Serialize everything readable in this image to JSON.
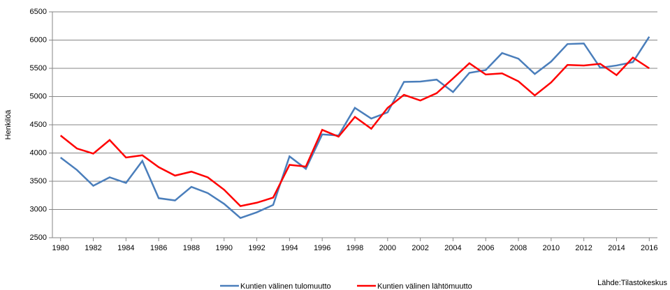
{
  "chart_data": {
    "type": "line",
    "y_label": "Henkilöä",
    "source": "Lähde:Tilastokeskus",
    "x": [
      1980,
      1981,
      1982,
      1983,
      1984,
      1985,
      1986,
      1987,
      1988,
      1989,
      1990,
      1991,
      1992,
      1993,
      1994,
      1995,
      1996,
      1997,
      1998,
      1999,
      2000,
      2001,
      2002,
      2003,
      2004,
      2005,
      2006,
      2007,
      2008,
      2009,
      2010,
      2011,
      2012,
      2013,
      2014,
      2015,
      2016
    ],
    "series": [
      {
        "name": "Kuntien välinen tulomuutto",
        "color": "#4a7ebb",
        "values": [
          3920,
          3700,
          3420,
          3570,
          3470,
          3860,
          3200,
          3160,
          3400,
          3290,
          3100,
          2850,
          2950,
          3080,
          3940,
          3720,
          4330,
          4310,
          4800,
          4610,
          4720,
          5260,
          5265,
          5300,
          5080,
          5420,
          5470,
          5770,
          5670,
          5400,
          5620,
          5930,
          5940,
          5510,
          5550,
          5610,
          6060
        ]
      },
      {
        "name": "Kuntien välinen lähtömuutto",
        "color": "#ff0000",
        "values": [
          4310,
          4080,
          3990,
          4230,
          3920,
          3960,
          3750,
          3600,
          3670,
          3570,
          3350,
          3060,
          3120,
          3210,
          3790,
          3760,
          4410,
          4290,
          4640,
          4430,
          4800,
          5030,
          4930,
          5060,
          5320,
          5590,
          5390,
          5410,
          5270,
          5020,
          5250,
          5560,
          5550,
          5580,
          5380,
          5690,
          5500
        ]
      }
    ],
    "xlim": [
      1979.5,
      2016.5
    ],
    "xticks": [
      1980,
      1982,
      1984,
      1986,
      1988,
      1990,
      1992,
      1994,
      1996,
      1998,
      2000,
      2002,
      2004,
      2006,
      2008,
      2010,
      2012,
      2014,
      2016
    ],
    "ylim": [
      2500,
      6500
    ],
    "yticks": [
      2500,
      3000,
      3500,
      4000,
      4500,
      5000,
      5500,
      6000,
      6500
    ],
    "grid": true,
    "legend": "bottom"
  }
}
